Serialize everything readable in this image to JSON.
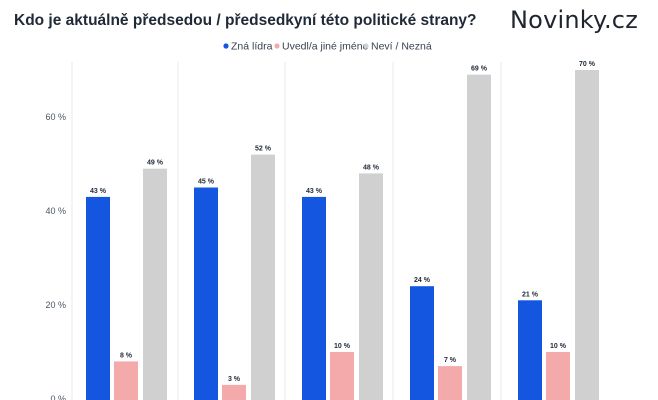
{
  "header": {
    "title": "Kdo je aktuálně předsedou / předsedkyní této politické strany?",
    "brand": "Novinky.cz"
  },
  "colors": {
    "zna": "#1456e0",
    "uvedl": "#f4a9ab",
    "nevi": "#d0d0d0",
    "grid": "#e8e8e8"
  },
  "chart_data": {
    "type": "bar",
    "title": "Kdo je aktuálně předsedou / předsedkyní této politické strany?",
    "xlabel": "",
    "ylabel": "",
    "categories": [
      "",
      "",
      "",
      "",
      ""
    ],
    "ylim": [
      0,
      70
    ],
    "yticks": [
      0,
      20,
      40,
      60
    ],
    "ytick_labels": [
      "0 %",
      "20 %",
      "40 %",
      "60 %"
    ],
    "grid": "vertical",
    "legend_position": "top-center",
    "value_suffix": " %",
    "series": [
      {
        "name": "Zná lídra",
        "color": "#1456e0",
        "values": [
          43,
          45,
          43,
          24,
          21
        ]
      },
      {
        "name": "Uvedl/a jiné jméno",
        "color": "#f4a9ab",
        "values": [
          8,
          3,
          10,
          7,
          10
        ]
      },
      {
        "name": "Neví / Nezná",
        "color": "#d0d0d0",
        "values": [
          49,
          52,
          48,
          69,
          70
        ]
      }
    ]
  }
}
